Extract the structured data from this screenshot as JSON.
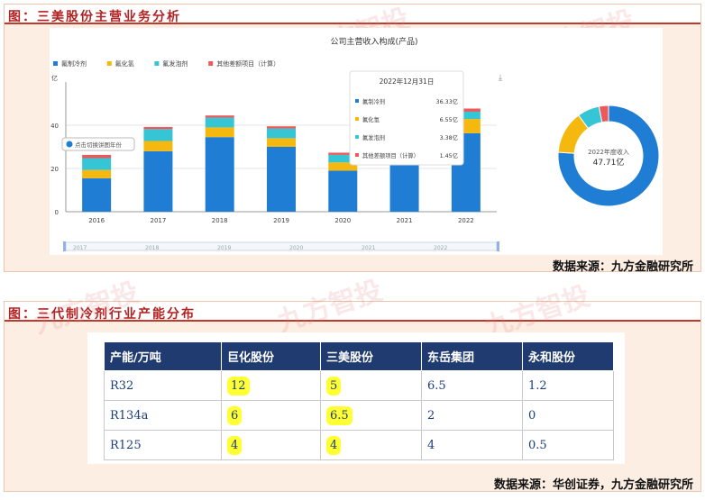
{
  "panel1": {
    "title": "图：三美股份主营业务分析",
    "source": "数据来源：九方金融研究所",
    "chart_title": "公司主营收入构成(产品)",
    "unit": "亿",
    "hint": "点击切换饼图年份",
    "download_icon": "download-icon",
    "watermark": "九方智投",
    "tooltip": {
      "date": "2022年12月31日",
      "rows": [
        {
          "name": "氟制冷剂",
          "value": "36.33亿"
        },
        {
          "name": "氟化氢",
          "value": "6.55亿"
        },
        {
          "name": "氟发泡剂",
          "value": "3.38亿"
        },
        {
          "name": "其他差额项目（计算）",
          "value": "1.45亿"
        }
      ]
    },
    "donut_label": "2022年度收入",
    "donut_value": "47.71亿",
    "slider_years": [
      "2017",
      "2018",
      "2019",
      "2020",
      "2021",
      "2022"
    ],
    "colors": {
      "s1": "#1f7dd4",
      "s2": "#f5b80f",
      "s3": "#36c5d4",
      "s4": "#ea5a5a"
    }
  },
  "chart_data": {
    "type": "bar",
    "stacked": true,
    "title": "公司主营收入构成(产品)",
    "ylabel": "亿",
    "categories": [
      "2016",
      "2017",
      "2018",
      "2019",
      "2020",
      "2021",
      "2022"
    ],
    "yticks": [
      "0",
      "20",
      "40"
    ],
    "ylim": [
      0,
      60
    ],
    "series": [
      {
        "name": "氟制冷剂",
        "values": [
          15.5,
          28,
          34.5,
          30,
          19,
          27,
          36.33
        ]
      },
      {
        "name": "氟化氢",
        "values": [
          3.8,
          4.7,
          4.5,
          4.0,
          3.8,
          5.0,
          6.55
        ]
      },
      {
        "name": "氟发泡剂",
        "values": [
          5.5,
          5.5,
          4.5,
          4.5,
          3.5,
          4.0,
          3.38
        ]
      },
      {
        "name": "其他差额项目（计算）",
        "values": [
          1.5,
          1.0,
          1.0,
          1.0,
          1.0,
          1.5,
          1.45
        ]
      }
    ],
    "legend_position": "top-left",
    "grid": true,
    "donut": {
      "values": [
        36.33,
        6.55,
        3.38,
        1.45
      ]
    }
  },
  "panel2": {
    "title": "图：三代制冷剂行业产能分布",
    "source": "数据来源：华创证券，九方金融研究所",
    "watermark": "九方智投",
    "headers": [
      "产能/万吨",
      "巨化股份",
      "三美股份",
      "东岳集团",
      "永和股份"
    ],
    "rows": [
      [
        "R32",
        "12",
        "5",
        "6.5",
        "1.2"
      ],
      [
        "R134a",
        "6",
        "6.5",
        "2",
        "0"
      ],
      [
        "R125",
        "4",
        "4",
        "4",
        "0.5"
      ]
    ]
  }
}
